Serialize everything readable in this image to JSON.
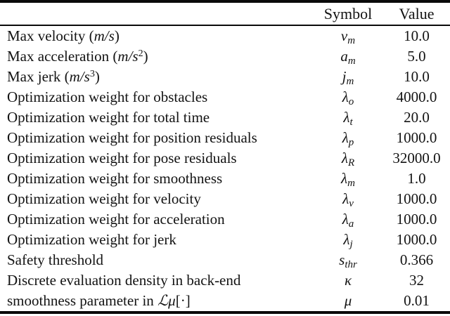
{
  "table": {
    "headers": {
      "param": "",
      "symbol": "Symbol",
      "value": "Value"
    },
    "rows": [
      {
        "label": [
          {
            "t": "Max velocity ("
          },
          {
            "t": "m/s",
            "s": "i"
          },
          {
            "t": ")"
          }
        ],
        "symbol": {
          "base": "v",
          "sub": "m"
        },
        "value": "10.0"
      },
      {
        "label": [
          {
            "t": "Max acceleration ("
          },
          {
            "t": "m/s",
            "s": "i"
          },
          {
            "t": "2",
            "s": "sup"
          },
          {
            "t": ")"
          }
        ],
        "symbol": {
          "base": "a",
          "sub": "m"
        },
        "value": "5.0"
      },
      {
        "label": [
          {
            "t": "Max jerk ("
          },
          {
            "t": "m/s",
            "s": "i"
          },
          {
            "t": "3",
            "s": "sup"
          },
          {
            "t": ")"
          }
        ],
        "symbol": {
          "base": "j",
          "sub": "m"
        },
        "value": "10.0"
      },
      {
        "label": [
          {
            "t": "Optimization weight for obstacles"
          }
        ],
        "symbol": {
          "base": "λ",
          "sub": "o"
        },
        "value": "4000.0"
      },
      {
        "label": [
          {
            "t": "Optimization weight for total time"
          }
        ],
        "symbol": {
          "base": "λ",
          "sub": "t"
        },
        "value": "20.0"
      },
      {
        "label": [
          {
            "t": "Optimization weight for position residuals"
          }
        ],
        "symbol": {
          "base": "λ",
          "sub": "p"
        },
        "value": "1000.0"
      },
      {
        "label": [
          {
            "t": "Optimization weight for pose residuals"
          }
        ],
        "symbol": {
          "base": "λ",
          "sub": "R"
        },
        "value": "32000.0"
      },
      {
        "label": [
          {
            "t": "Optimization weight for smoothness"
          }
        ],
        "symbol": {
          "base": "λ",
          "sub": "m"
        },
        "value": "1.0"
      },
      {
        "label": [
          {
            "t": "Optimization weight for velocity"
          }
        ],
        "symbol": {
          "base": "λ",
          "sub": "v"
        },
        "value": "1000.0"
      },
      {
        "label": [
          {
            "t": "Optimization weight for acceleration"
          }
        ],
        "symbol": {
          "base": "λ",
          "sub": "a"
        },
        "value": "1000.0"
      },
      {
        "label": [
          {
            "t": "Optimization weight for jerk"
          }
        ],
        "symbol": {
          "base": "λ",
          "sub": "j"
        },
        "value": "1000.0"
      },
      {
        "label": [
          {
            "t": "Safety threshold"
          }
        ],
        "symbol": {
          "base": "s",
          "sub": "thr"
        },
        "value": "0.366"
      },
      {
        "label": [
          {
            "t": "Discrete evaluation density in back-end"
          }
        ],
        "symbol": {
          "base": "κ",
          "sub": ""
        },
        "value": "32"
      },
      {
        "label": [
          {
            "t": "smoothness parameter in "
          },
          {
            "t": "ℒμ",
            "s": "i"
          },
          {
            "t": "[·]"
          }
        ],
        "symbol": {
          "base": "μ",
          "sub": ""
        },
        "value": "0.01"
      }
    ]
  },
  "colors": {
    "text": "#131313",
    "rule": "#0a0a0a",
    "background": "#ffffff"
  }
}
